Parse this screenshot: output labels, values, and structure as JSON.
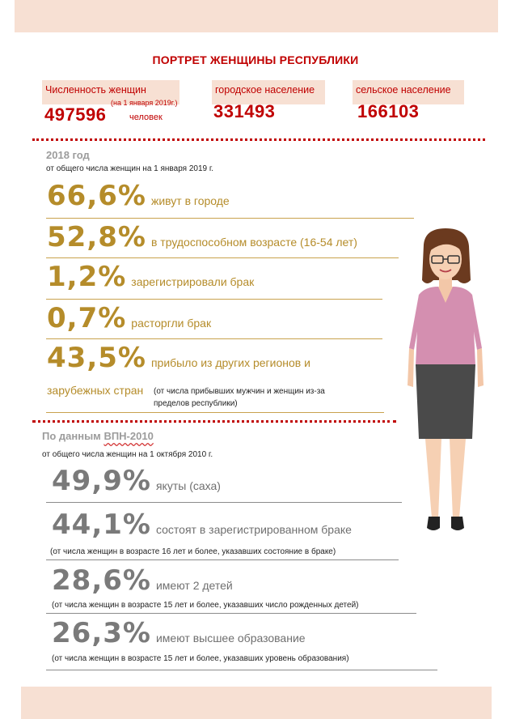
{
  "title": "ПОРТРЕТ ЖЕНЩИНЫ РЕСПУБЛИКИ",
  "summary": {
    "women_label": "Численность женщин",
    "women_note": "(на 1 января 2019г.)",
    "women_value": "497596",
    "women_unit": "человек",
    "urban_label": "городское население",
    "urban_value": "331493",
    "rural_label": "сельское население",
    "rural_value": "166103"
  },
  "section1": {
    "heading": "2018 год",
    "subheading": "от общего числа женщин на 1 января 2019 г.",
    "stats": [
      {
        "value": "66,6%",
        "text": "живут в городе"
      },
      {
        "value": "52,8%",
        "text": "в трудоспособном возрасте (16-54 лет)"
      },
      {
        "value": "1,2%",
        "text": "зарегистрировали брак"
      },
      {
        "value": "0,7%",
        "text": "расторгли брак"
      },
      {
        "value": "43,5%",
        "text": "прибыло из других регионов и"
      }
    ],
    "continuation": "зарубежных стран",
    "continuation_note_1": "(от числа прибывших мужчин и женщин из-за",
    "continuation_note_2": "пределов республики)"
  },
  "section2": {
    "heading_prefix": "По данным",
    "heading_marked": "ВПН-2010",
    "subheading": "от общего числа женщин на 1 октября 2010 г.",
    "stats": [
      {
        "value": "49,9%",
        "text": "якуты (саха)",
        "note": ""
      },
      {
        "value": "44,1%",
        "text": "состоят в зарегистрированном браке",
        "note": "(от числа женщин в возрасте 16 лет и более, указавших состояние в браке)"
      },
      {
        "value": "28,6%",
        "text": "имеют 2 детей",
        "note": "(от числа женщин в возрасте 15 лет и более, указавших число рожденных детей)"
      },
      {
        "value": "26,3%",
        "text": "имеют высшее образование",
        "note": "(от числа женщин в возрасте 15 лет и более, указавших уровень образования)"
      }
    ]
  },
  "colors": {
    "accent_red": "#c00000",
    "gold": "#b58c2a",
    "grey": "#7a7a7a",
    "band": "#f7e0d3"
  },
  "icons": {
    "illustration": "woman-figure"
  }
}
